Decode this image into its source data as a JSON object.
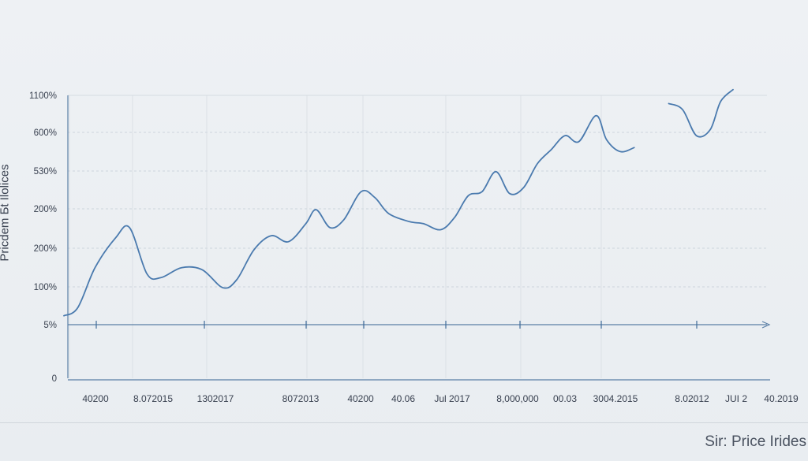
{
  "chart_data": {
    "type": "line",
    "title": "",
    "ylabel": "Pricdem Бt Ilolices",
    "footer": "Sir: Price Irides",
    "y_tick_labels": [
      "1100%",
      "600%",
      "530%",
      "200%",
      "200%",
      "100%",
      "5%",
      "0"
    ],
    "x_tick_labels": [
      "40200",
      "8.072015",
      "1302017",
      "8072013",
      "40200",
      "40.06",
      "Jul 2017",
      "8,000,000",
      "00.03",
      "3004.2015",
      "8.02012",
      "JUI 2",
      "40.2019"
    ],
    "grid": true,
    "series": [
      {
        "values": [
          [
            0.0,
            5.4
          ],
          [
            0.2,
            5.6
          ],
          [
            0.45,
            6.6
          ],
          [
            0.75,
            7.35
          ],
          [
            0.95,
            7.6
          ],
          [
            1.2,
            6.45
          ],
          [
            1.4,
            6.35
          ],
          [
            1.7,
            6.6
          ],
          [
            2.0,
            6.55
          ],
          [
            2.3,
            6.1
          ],
          [
            2.5,
            6.3
          ],
          [
            2.75,
            7.05
          ],
          [
            3.0,
            7.4
          ],
          [
            3.25,
            7.25
          ],
          [
            3.5,
            7.7
          ],
          [
            3.65,
            8.05
          ],
          [
            3.85,
            7.6
          ],
          [
            4.05,
            7.8
          ],
          [
            4.3,
            8.5
          ],
          [
            4.5,
            8.35
          ],
          [
            4.7,
            7.95
          ],
          [
            5.0,
            7.75
          ],
          [
            5.2,
            7.7
          ],
          [
            5.45,
            7.55
          ],
          [
            5.65,
            7.85
          ],
          [
            5.85,
            8.4
          ],
          [
            6.05,
            8.5
          ],
          [
            6.25,
            9.0
          ],
          [
            6.45,
            8.45
          ],
          [
            6.65,
            8.6
          ],
          [
            6.85,
            9.2
          ],
          [
            7.05,
            9.55
          ],
          [
            7.25,
            9.9
          ],
          [
            7.45,
            9.75
          ],
          [
            7.7,
            10.4
          ],
          [
            7.85,
            9.8
          ],
          [
            8.05,
            9.5
          ],
          [
            8.25,
            9.6
          ]
        ]
      },
      {
        "values": [
          [
            8.75,
            10.7
          ],
          [
            8.95,
            10.55
          ],
          [
            9.15,
            9.9
          ],
          [
            9.35,
            10.05
          ],
          [
            9.5,
            10.75
          ],
          [
            9.68,
            11.05
          ]
        ]
      }
    ],
    "colors": {
      "line": "#4a7aae",
      "axis": "#5a7fa6",
      "grid": "#cdd4dc",
      "tick": "#3f6b9a"
    }
  }
}
